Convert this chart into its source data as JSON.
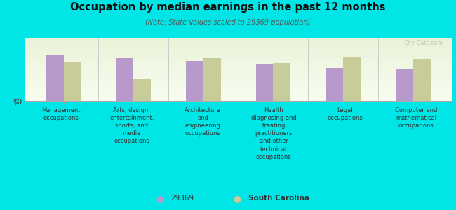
{
  "title": "Occupation by median earnings in the past 12 months",
  "subtitle": "(Note: State values scaled to 29369 population)",
  "background_color": "#00e5e5",
  "plot_bg_top": "#eaf2d8",
  "plot_bg_bottom": "#f8fdf0",
  "bar_color_29369": "#b899cc",
  "bar_color_sc": "#c8cc99",
  "categories": [
    "Management\noccupations",
    "Arts, design,\nentertainment,\nsports, and\nmedia\noccupations",
    "Architecture\nand\nengineering\noccupations",
    "Health\ndiagnosing and\ntreating\npractitioners\nand other\ntechnical\noccupations",
    "Legal\noccupations",
    "Computer and\nmathematical\noccupations"
  ],
  "values_29369": [
    0.72,
    0.68,
    0.63,
    0.58,
    0.52,
    0.5
  ],
  "values_sc": [
    0.62,
    0.35,
    0.68,
    0.6,
    0.7,
    0.65
  ],
  "ylim_max": 1.0,
  "ylabel": "$0",
  "legend_29369": "29369",
  "legend_sc": "South Carolina",
  "watermark": "City-Data.com"
}
